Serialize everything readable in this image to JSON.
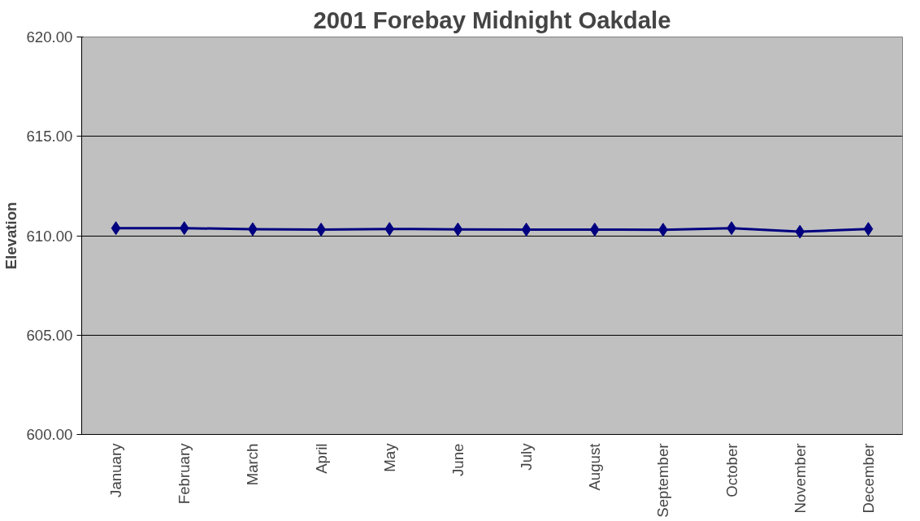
{
  "chart_data": {
    "type": "line",
    "title": "2001 Forebay Midnight Oakdale",
    "ylabel": "Elevation",
    "categories": [
      "January",
      "February",
      "March",
      "April",
      "May",
      "June",
      "July",
      "August",
      "September",
      "October",
      "November",
      "December"
    ],
    "series": [
      {
        "color": "#000080",
        "values": [
          610.38,
          610.38,
          610.33,
          610.31,
          610.34,
          610.32,
          610.31,
          610.31,
          610.3,
          610.38,
          610.2,
          610.34
        ]
      }
    ],
    "ylim": [
      600,
      620
    ],
    "yticks": [
      {
        "value": 600,
        "label": "600.00"
      },
      {
        "value": 605,
        "label": "605.00"
      },
      {
        "value": 610,
        "label": "610.00"
      },
      {
        "value": 615,
        "label": "615.00"
      },
      {
        "value": 620,
        "label": "620.00"
      }
    ],
    "grid": "y",
    "marker": "diamond",
    "line_style": "solid"
  }
}
